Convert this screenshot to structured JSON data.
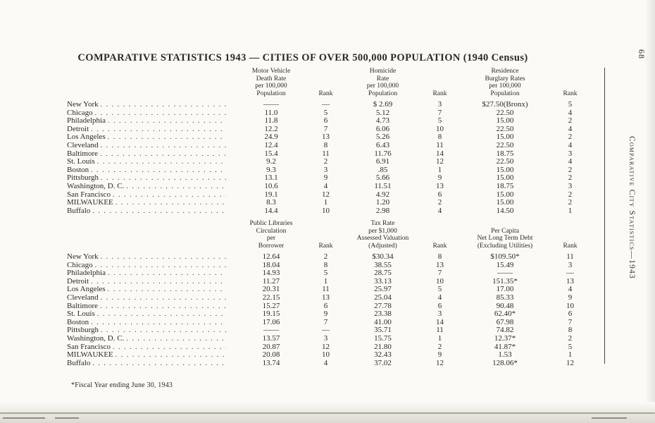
{
  "page": {
    "title": "COMPARATIVE STATISTICS 1943 — CITIES OF OVER 500,000 POPULATION (1940 Census)",
    "page_number": "68",
    "side_text": "Comparative City Statistics—1943",
    "footnote": "*Fiscal Year ending June 30, 1943"
  },
  "table1": {
    "headers": [
      "",
      "Motor Vehicle\nDeath Rate\nper 100,000\nPopulation",
      "Rank",
      "Homicide\nRate\nper 100,000\nPopulation",
      "Rank",
      "Residence\nBurglary Rates\nper 100,000\nPopulation",
      "Rank"
    ],
    "rows": [
      [
        "New York",
        "——",
        "—",
        "$ 2.69",
        "3",
        "$27.50(Bronx)",
        "5"
      ],
      [
        "Chicago",
        "11.0",
        "5",
        "5.12",
        "7",
        "22.50",
        "4"
      ],
      [
        "Philadelphia",
        "11.8",
        "6",
        "4.73",
        "5",
        "15.00",
        "2"
      ],
      [
        "Detroit",
        "12.2",
        "7",
        "6.06",
        "10",
        "22.50",
        "4"
      ],
      [
        "Los Angeles",
        "24.9",
        "13",
        "5.26",
        "8",
        "15.00",
        "2"
      ],
      [
        "Cleveland",
        "12.4",
        "8",
        "6.43",
        "11",
        "22.50",
        "4"
      ],
      [
        "Baltimore",
        "15.4",
        "11",
        "11.76",
        "14",
        "18.75",
        "3"
      ],
      [
        "St. Louis",
        "9.2",
        "2",
        "6.91",
        "12",
        "22.50",
        "4"
      ],
      [
        "Boston",
        "9.3",
        "3",
        ".85",
        "1",
        "15.00",
        "2"
      ],
      [
        "Pittsburgh",
        "13.1",
        "9",
        "5.66",
        "9",
        "15.00",
        "2"
      ],
      [
        "Washington, D. C.",
        "10.6",
        "4",
        "11.51",
        "13",
        "18.75",
        "3"
      ],
      [
        "San Francisco",
        "19.1",
        "12",
        "4.92",
        "6",
        "15.00",
        "2"
      ],
      [
        "MILWAUKEE",
        "8.3",
        "1",
        "1.20",
        "2",
        "15.00",
        "2"
      ],
      [
        "Buffalo",
        "14.4",
        "10",
        "2.98",
        "4",
        "14.50",
        "1"
      ]
    ]
  },
  "table2": {
    "headers": [
      "",
      "Public Libraries\nCirculation\nper\nBorrower",
      "Rank",
      "Tax Rate\nper $1,000\nAssessed Valuation\n(Adjusted)",
      "Rank",
      "Per Capita\nNet Long Term Debt\n(Excluding Utilities)",
      "Rank"
    ],
    "rows": [
      [
        "New York",
        "12.64",
        "2",
        "$30.34",
        "8",
        "$109.50*",
        "11"
      ],
      [
        "Chicago",
        "18.04",
        "8",
        "38.55",
        "13",
        "15.49",
        "3"
      ],
      [
        "Philadelphia",
        "14.93",
        "5",
        "28.75",
        "7",
        "——",
        "—"
      ],
      [
        "Detroit",
        "11.27",
        "1",
        "33.13",
        "10",
        "151.35*",
        "13"
      ],
      [
        "Los Angeles",
        "20.31",
        "11",
        "25.97",
        "5",
        "17.00",
        "4"
      ],
      [
        "Cleveland",
        "22.15",
        "13",
        "25.04",
        "4",
        "85.33",
        "9"
      ],
      [
        "Baltimore",
        "15.27",
        "6",
        "27.78",
        "6",
        "90.48",
        "10"
      ],
      [
        "St. Louis",
        "19.15",
        "9",
        "23.38",
        "3",
        "62.40*",
        "6"
      ],
      [
        "Boston",
        "17.06",
        "7",
        "41.00",
        "14",
        "67.98",
        "7"
      ],
      [
        "Pittsburgh",
        "——",
        "—",
        "35.71",
        "11",
        "74.82",
        "8"
      ],
      [
        "Washington, D. C.",
        "13.57",
        "3",
        "15.75",
        "1",
        "12.37*",
        "2"
      ],
      [
        "San Francisco",
        "20.87",
        "12",
        "21.80",
        "2",
        "41.87*",
        "5"
      ],
      [
        "MILWAUKEE",
        "20.08",
        "10",
        "32.43",
        "9",
        "1.53",
        "1"
      ],
      [
        "Buffalo",
        "13.74",
        "4",
        "37.02",
        "12",
        "128.06*",
        "12"
      ]
    ]
  }
}
